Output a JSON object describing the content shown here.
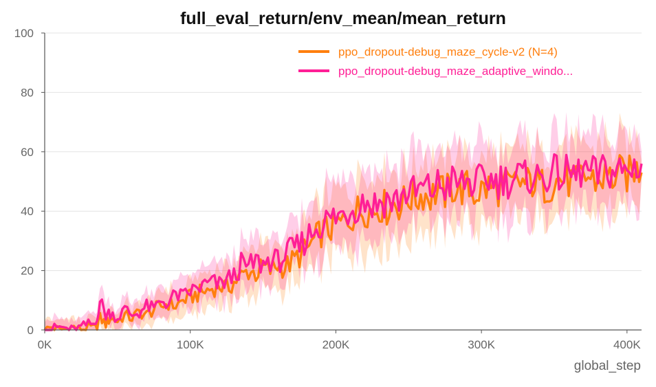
{
  "colors": {
    "cycle": "#FF7F0E",
    "adaptive": "#FF1F96",
    "background": "#FFFFFF",
    "grid": "#E3E3E3",
    "axis": "#555555",
    "tick_text": "#666666",
    "title_text": "#111111"
  },
  "chart_data": {
    "type": "line",
    "title": "full_eval_return/env_mean/mean_return",
    "xlabel": "global_step",
    "ylabel": "",
    "xlim": [
      0,
      410000
    ],
    "ylim": [
      0,
      100
    ],
    "x_ticks": [
      0,
      100000,
      200000,
      300000,
      400000
    ],
    "x_tick_labels": [
      "0K",
      "100K",
      "200K",
      "300K",
      "400K"
    ],
    "y_ticks": [
      0,
      20,
      40,
      60,
      80,
      100
    ],
    "y_tick_labels": [
      "0",
      "20",
      "40",
      "60",
      "80",
      "100"
    ],
    "grid": "horizontal",
    "legend_position": "top-right",
    "bands": "shaded min/max range around each line",
    "series": [
      {
        "name": "ppo_dropout-debug_maze_cycle-v2 (N=4)",
        "color": "#FF7F0E",
        "points": [
          [
            0,
            0
          ],
          [
            5000,
            1
          ],
          [
            10000,
            0
          ],
          [
            15000,
            0.5
          ],
          [
            20000,
            1
          ],
          [
            25000,
            0
          ],
          [
            30000,
            1
          ],
          [
            35000,
            0.5
          ],
          [
            38000,
            4
          ],
          [
            42000,
            2
          ],
          [
            45000,
            4
          ],
          [
            50000,
            3
          ],
          [
            55000,
            5
          ],
          [
            60000,
            4
          ],
          [
            65000,
            6
          ],
          [
            70000,
            5
          ],
          [
            75000,
            7
          ],
          [
            80000,
            8
          ],
          [
            85000,
            9
          ],
          [
            90000,
            8
          ],
          [
            95000,
            10
          ],
          [
            100000,
            11
          ],
          [
            105000,
            12
          ],
          [
            110000,
            13
          ],
          [
            115000,
            14
          ],
          [
            120000,
            15
          ],
          [
            125000,
            14
          ],
          [
            130000,
            16
          ],
          [
            135000,
            18
          ],
          [
            140000,
            20
          ],
          [
            145000,
            19
          ],
          [
            150000,
            21
          ],
          [
            155000,
            20
          ],
          [
            160000,
            22
          ],
          [
            165000,
            21
          ],
          [
            170000,
            23
          ],
          [
            175000,
            25
          ],
          [
            180000,
            27
          ],
          [
            185000,
            30
          ],
          [
            190000,
            33
          ],
          [
            195000,
            34
          ],
          [
            200000,
            35
          ],
          [
            205000,
            36
          ],
          [
            210000,
            38
          ],
          [
            215000,
            40
          ],
          [
            220000,
            41
          ],
          [
            225000,
            40
          ],
          [
            230000,
            42
          ],
          [
            235000,
            41
          ],
          [
            240000,
            43
          ],
          [
            245000,
            42
          ],
          [
            250000,
            45
          ],
          [
            255000,
            44
          ],
          [
            260000,
            46
          ],
          [
            265000,
            45
          ],
          [
            270000,
            47
          ],
          [
            275000,
            46
          ],
          [
            280000,
            48
          ],
          [
            285000,
            47
          ],
          [
            290000,
            48
          ],
          [
            295000,
            46
          ],
          [
            300000,
            47
          ],
          [
            305000,
            48
          ],
          [
            310000,
            47
          ],
          [
            315000,
            49
          ],
          [
            320000,
            48
          ],
          [
            325000,
            50
          ],
          [
            330000,
            49
          ],
          [
            335000,
            50
          ],
          [
            340000,
            49
          ],
          [
            345000,
            48
          ],
          [
            350000,
            50
          ],
          [
            355000,
            51
          ],
          [
            360000,
            50
          ],
          [
            365000,
            49
          ],
          [
            370000,
            52
          ],
          [
            375000,
            51
          ],
          [
            380000,
            50
          ],
          [
            385000,
            52
          ],
          [
            390000,
            51
          ],
          [
            395000,
            53
          ],
          [
            400000,
            52
          ],
          [
            405000,
            54
          ],
          [
            410000,
            53
          ]
        ]
      },
      {
        "name": "ppo_dropout-debug_maze_adaptive_windo...",
        "color": "#FF1F96",
        "points": [
          [
            0,
            0
          ],
          [
            5000,
            0.5
          ],
          [
            10000,
            1
          ],
          [
            15000,
            0.5
          ],
          [
            20000,
            0
          ],
          [
            25000,
            1
          ],
          [
            30000,
            2
          ],
          [
            35000,
            2
          ],
          [
            38000,
            10
          ],
          [
            42000,
            5
          ],
          [
            45000,
            6
          ],
          [
            50000,
            4
          ],
          [
            55000,
            7
          ],
          [
            60000,
            5
          ],
          [
            65000,
            6
          ],
          [
            70000,
            8
          ],
          [
            75000,
            7
          ],
          [
            80000,
            10
          ],
          [
            85000,
            9
          ],
          [
            90000,
            12
          ],
          [
            95000,
            11
          ],
          [
            100000,
            13
          ],
          [
            105000,
            14
          ],
          [
            110000,
            15
          ],
          [
            115000,
            16
          ],
          [
            120000,
            15
          ],
          [
            125000,
            17
          ],
          [
            130000,
            18
          ],
          [
            135000,
            22
          ],
          [
            140000,
            21
          ],
          [
            145000,
            23
          ],
          [
            150000,
            22
          ],
          [
            155000,
            24
          ],
          [
            160000,
            23
          ],
          [
            165000,
            25
          ],
          [
            170000,
            27
          ],
          [
            175000,
            28
          ],
          [
            180000,
            31
          ],
          [
            185000,
            34
          ],
          [
            190000,
            36
          ],
          [
            195000,
            37
          ],
          [
            200000,
            38
          ],
          [
            205000,
            39
          ],
          [
            210000,
            41
          ],
          [
            215000,
            42
          ],
          [
            220000,
            44
          ],
          [
            225000,
            42
          ],
          [
            230000,
            43
          ],
          [
            235000,
            44
          ],
          [
            240000,
            43
          ],
          [
            245000,
            45
          ],
          [
            250000,
            47
          ],
          [
            255000,
            46
          ],
          [
            260000,
            48
          ],
          [
            265000,
            47
          ],
          [
            270000,
            49
          ],
          [
            275000,
            48
          ],
          [
            280000,
            50
          ],
          [
            285000,
            49
          ],
          [
            290000,
            50
          ],
          [
            295000,
            49
          ],
          [
            300000,
            50
          ],
          [
            305000,
            51
          ],
          [
            310000,
            50
          ],
          [
            315000,
            51
          ],
          [
            320000,
            50
          ],
          [
            325000,
            52
          ],
          [
            330000,
            51
          ],
          [
            335000,
            52
          ],
          [
            340000,
            51
          ],
          [
            345000,
            52
          ],
          [
            350000,
            53
          ],
          [
            355000,
            52
          ],
          [
            360000,
            53
          ],
          [
            365000,
            52
          ],
          [
            370000,
            54
          ],
          [
            375000,
            53
          ],
          [
            380000,
            52
          ],
          [
            385000,
            54
          ],
          [
            390000,
            53
          ],
          [
            395000,
            54
          ],
          [
            400000,
            53
          ],
          [
            405000,
            55
          ],
          [
            410000,
            56
          ]
        ]
      }
    ]
  }
}
